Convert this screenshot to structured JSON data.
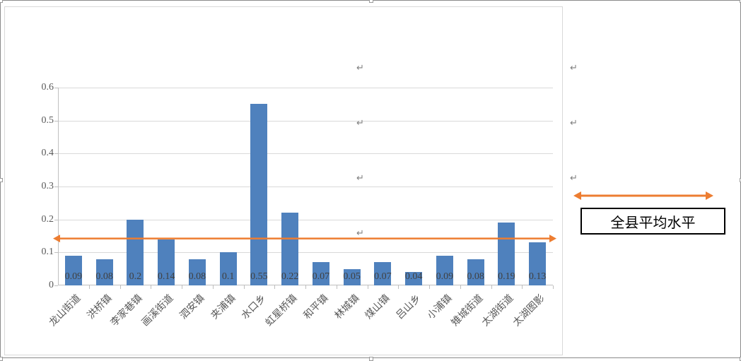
{
  "chart": {
    "type": "bar",
    "categories": [
      "龙山街道",
      "洪桥镇",
      "李家巷镇",
      "画溪街道",
      "泗安镇",
      "夹浦镇",
      "水口乡",
      "虹星桥镇",
      "和平镇",
      "林城镇",
      "煤山镇",
      "吕山乡",
      "小浦镇",
      "雉城街道",
      "太湖街道",
      "太湖图影"
    ],
    "values": [
      0.09,
      0.08,
      0.2,
      0.14,
      0.08,
      0.1,
      0.55,
      0.22,
      0.07,
      0.05,
      0.07,
      0.04,
      0.09,
      0.08,
      0.19,
      0.13
    ],
    "bar_color": "#4f81bd",
    "grid_color": "#d9d9d9",
    "axis_color": "#bfbfbf",
    "tick_label_color": "#595959",
    "data_label_color": "#404040",
    "background_color": "#ffffff",
    "ylim": [
      0,
      0.6
    ],
    "ytick_step": 0.1,
    "ytick_labels": [
      "0",
      "0.1",
      "0.2",
      "0.3",
      "0.4",
      "0.5",
      "0.6"
    ],
    "bar_width_ratio": 0.55,
    "tick_fontsize": 14,
    "data_label_fontsize": 14,
    "x_label_rotation": -45,
    "average_line": {
      "value": 0.14,
      "color": "#ed7d31",
      "stroke_width": 2.5,
      "arrowhead_size": 10
    }
  },
  "legend": {
    "label": "全县平均水平",
    "text_color": "#000000",
    "border_color": "#000000",
    "border_width": 2,
    "fontsize": 20,
    "arrow_color": "#ed7d31",
    "arrow_stroke_width": 3
  },
  "frame": {
    "outer_border_color": "#8a8a8a",
    "chart_border_color": "#d9d9d9"
  },
  "selection_handles": true,
  "paragraph_mark": "↵"
}
